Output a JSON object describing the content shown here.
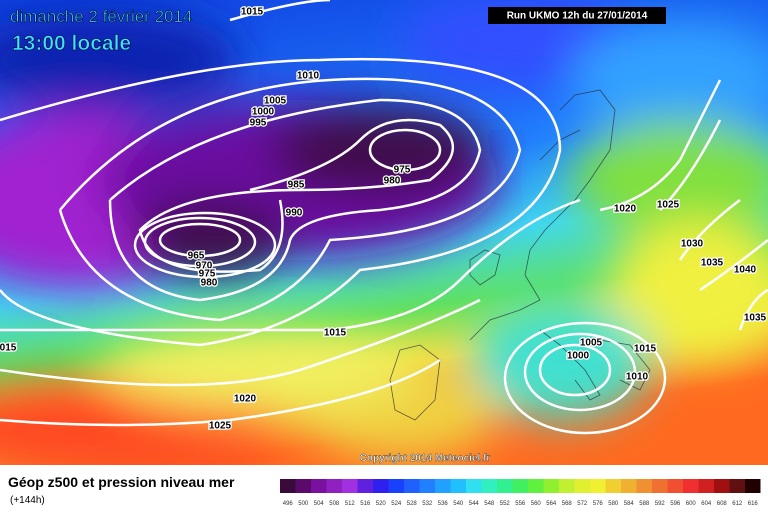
{
  "header": {
    "date": "dimanche 2 février 2014",
    "time": "13:00 locale",
    "run": "Run UKMO 12h du 27/01/2014"
  },
  "isobar_labels": [
    "1015",
    "1010",
    "1005",
    "1000",
    "995",
    "975",
    "980",
    "985",
    "990",
    "965",
    "970",
    "975",
    "980",
    "1015",
    "015",
    "1020",
    "1025",
    "1020",
    "1025",
    "1030",
    "1035",
    "1040",
    "1035",
    "1005",
    "1000",
    "1015",
    "1010"
  ],
  "copyright": "Copyright 2014 Meteociel.fr",
  "footer": {
    "title": "Géop z500 et pression niveau mer",
    "lead": "(+144h)"
  },
  "scale_labels": [
    "496",
    "500",
    "504",
    "508",
    "512",
    "516",
    "520",
    "524",
    "528",
    "532",
    "536",
    "540",
    "544",
    "548",
    "552",
    "556",
    "560",
    "564",
    "568",
    "572",
    "576",
    "580",
    "584",
    "588",
    "592",
    "596",
    "600",
    "604",
    "608",
    "612",
    "616"
  ]
}
